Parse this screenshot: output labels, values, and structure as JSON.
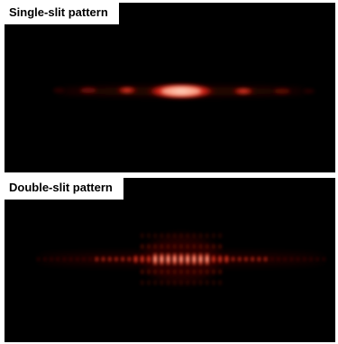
{
  "panels": {
    "single": {
      "label": "Single-slit pattern"
    },
    "double": {
      "label": "Double-slit pattern"
    }
  },
  "colors": {
    "background": "#000000",
    "glow_core": "#ffd2b8",
    "glow_mid": "#ff4a2e",
    "glow_outer": "#8a0d08",
    "label_bg": "#ffffff"
  }
}
